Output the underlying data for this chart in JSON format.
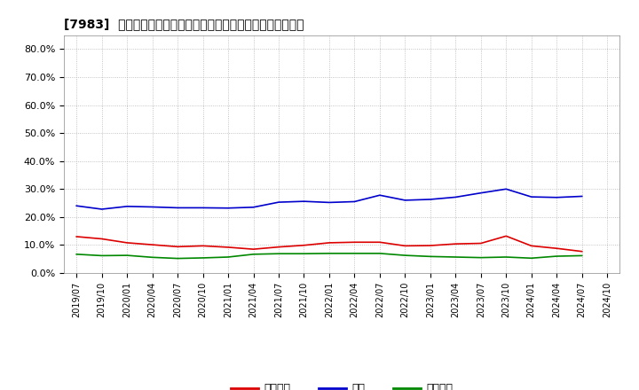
{
  "title": "[7983]  割上債権、在庫、買入債務の総資産に対する比率の推移",
  "background_color": "#ffffff",
  "plot_bg_color": "#ffffff",
  "grid_color": "#aaaaaa",
  "ylim": [
    0.0,
    0.85
  ],
  "yticks": [
    0.0,
    0.1,
    0.2,
    0.3,
    0.4,
    0.5,
    0.6,
    0.7,
    0.8
  ],
  "ytick_labels": [
    "0.0%",
    "10.0%",
    "20.0%",
    "30.0%",
    "40.0%",
    "50.0%",
    "60.0%",
    "70.0%",
    "80.0%"
  ],
  "x_labels": [
    "2019/07",
    "2019/10",
    "2020/01",
    "2020/04",
    "2020/07",
    "2020/10",
    "2021/01",
    "2021/04",
    "2021/07",
    "2021/10",
    "2022/01",
    "2022/04",
    "2022/07",
    "2022/10",
    "2023/01",
    "2023/04",
    "2023/07",
    "2023/10",
    "2024/01",
    "2024/04",
    "2024/07",
    "2024/10"
  ],
  "series_order": [
    "割上債権",
    "在庫",
    "買入債務"
  ],
  "series": {
    "割上債権": {
      "color": "#dd0000",
      "values": [
        0.13,
        0.122,
        0.108,
        0.101,
        0.094,
        0.097,
        0.092,
        0.085,
        0.093,
        0.099,
        0.108,
        0.11,
        0.11,
        0.097,
        0.098,
        0.104,
        0.106,
        0.132,
        0.097,
        0.088,
        0.077,
        null
      ]
    },
    "在庫": {
      "color": "#0000cc",
      "values": [
        0.24,
        0.228,
        0.238,
        0.236,
        0.233,
        0.233,
        0.232,
        0.235,
        0.253,
        0.256,
        0.252,
        0.255,
        0.278,
        0.26,
        0.263,
        0.271,
        0.286,
        0.3,
        0.272,
        0.27,
        0.274,
        null
      ]
    },
    "買入債務": {
      "color": "#008800",
      "values": [
        0.067,
        0.062,
        0.063,
        0.056,
        0.052,
        0.054,
        0.057,
        0.067,
        0.069,
        0.069,
        0.07,
        0.07,
        0.07,
        0.063,
        0.059,
        0.057,
        0.055,
        0.057,
        0.053,
        0.06,
        0.062,
        null
      ]
    }
  },
  "legend_labels": [
    "割上債権",
    "在庫",
    "買入債務"
  ],
  "legend_colors": [
    "#dd0000",
    "#0000cc",
    "#008800"
  ]
}
